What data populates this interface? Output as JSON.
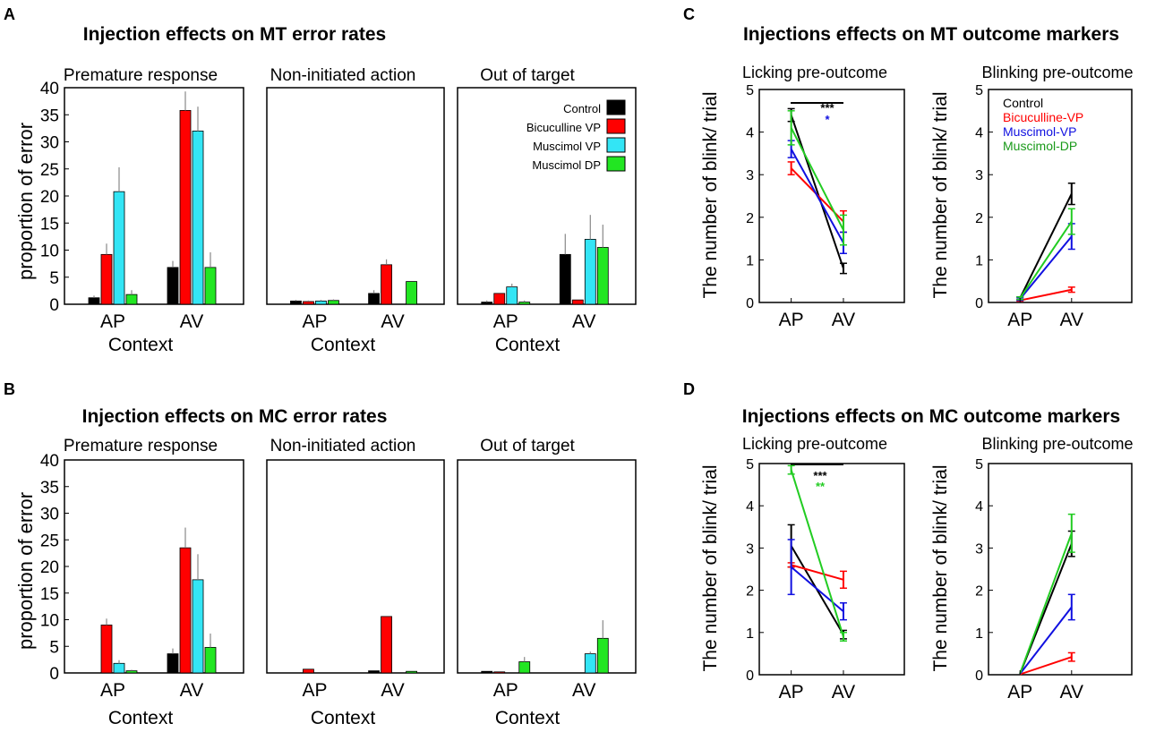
{
  "colors": {
    "control": "#000000",
    "bic": "#ff0000",
    "musVP": "#33e5f5",
    "musDP": "#22e622",
    "blue": "#1010e0",
    "green": "#22cc22"
  },
  "panelA": {
    "letter": "A",
    "title": "Injection effects on MT error rates",
    "ylabel": "proportion of error",
    "xlabel": "Context",
    "yticks": [
      "0",
      "5",
      "10",
      "15",
      "20",
      "25",
      "30",
      "35",
      "40"
    ],
    "legend": [
      "Control",
      "Bicuculline VP",
      "Muscimol VP",
      "Muscimol DP"
    ],
    "subtitles": [
      "Premature response",
      "Non-initiated action",
      "Out of target"
    ],
    "xticks": [
      "AP",
      "AV"
    ]
  },
  "panelB": {
    "letter": "B",
    "title": "Injection effects on MC error rates",
    "ylabel": "proportion of error",
    "xlabel": "Context",
    "yticks": [
      "0",
      "5",
      "10",
      "15",
      "20",
      "25",
      "30",
      "35",
      "40"
    ],
    "subtitles": [
      "Premature response",
      "Non-initiated action",
      "Out of target"
    ],
    "xticks": [
      "AP",
      "AV"
    ]
  },
  "panelC": {
    "letter": "C",
    "title": "Injections effects on MT outcome markers",
    "ylabel": "The number of blink/ trial",
    "yticks": [
      "0",
      "1",
      "2",
      "3",
      "4",
      "5"
    ],
    "subtitles": [
      "Licking pre-outcome",
      "Blinking pre-outcome"
    ],
    "legend": [
      "Control",
      "Bicuculline-VP",
      "Muscimol-VP",
      "Muscimol-DP"
    ],
    "sig_black": "***",
    "sig_colored": "*",
    "xticks": [
      "AP",
      "AV"
    ]
  },
  "panelD": {
    "letter": "D",
    "title": "Injections effects on MC outcome markers",
    "ylabel": "The number of blink/ trial",
    "yticks": [
      "0",
      "1",
      "2",
      "3",
      "4",
      "5"
    ],
    "subtitles": [
      "Licking pre-outcome",
      "Blinking pre-outcome"
    ],
    "sig_black": "***",
    "sig_colored": "**",
    "xticks": [
      "AP",
      "AV"
    ]
  },
  "chart_data": [
    {
      "id": "A1",
      "type": "bar",
      "title": "Premature response",
      "categories": [
        "AP",
        "AV"
      ],
      "ylim": [
        0,
        40
      ],
      "ylabel": "proportion of error",
      "xlabel": "Context",
      "series": [
        {
          "name": "Control",
          "values": [
            1.2,
            6.8
          ],
          "err": [
            0.4,
            1.2
          ]
        },
        {
          "name": "Bicuculline VP",
          "values": [
            9.2,
            35.8
          ],
          "err": [
            2,
            3.5
          ]
        },
        {
          "name": "Muscimol VP",
          "values": [
            20.8,
            32
          ],
          "err": [
            4.5,
            4.5
          ]
        },
        {
          "name": "Muscimol DP",
          "values": [
            1.8,
            6.8
          ],
          "err": [
            0.8,
            2.8
          ]
        }
      ]
    },
    {
      "id": "A2",
      "type": "bar",
      "title": "Non-initiated action",
      "categories": [
        "AP",
        "AV"
      ],
      "ylim": [
        0,
        40
      ],
      "xlabel": "Context",
      "series": [
        {
          "name": "Control",
          "values": [
            0.6,
            2
          ],
          "err": [
            0.2,
            0.6
          ]
        },
        {
          "name": "Bicuculline VP",
          "values": [
            0.5,
            7.3
          ],
          "err": [
            0.2,
            1
          ]
        },
        {
          "name": "Muscimol VP",
          "values": [
            0.6,
            0
          ],
          "err": [
            0.2,
            0
          ]
        },
        {
          "name": "Muscimol DP",
          "values": [
            0.7,
            4.2
          ],
          "err": [
            0.2,
            0
          ]
        }
      ]
    },
    {
      "id": "A3",
      "type": "bar",
      "title": "Out of target",
      "categories": [
        "AP",
        "AV"
      ],
      "ylim": [
        0,
        40
      ],
      "xlabel": "Context",
      "series": [
        {
          "name": "Control",
          "values": [
            0.4,
            9.2
          ],
          "err": [
            0.3,
            3.8
          ]
        },
        {
          "name": "Bicuculline VP",
          "values": [
            2,
            0.8
          ],
          "err": [
            0,
            0
          ]
        },
        {
          "name": "Muscimol VP",
          "values": [
            3.2,
            12
          ],
          "err": [
            0.6,
            4.5
          ]
        },
        {
          "name": "Muscimol DP",
          "values": [
            0.4,
            10.5
          ],
          "err": [
            0.3,
            4.2
          ]
        }
      ]
    },
    {
      "id": "B1",
      "type": "bar",
      "title": "Premature response",
      "categories": [
        "AP",
        "AV"
      ],
      "ylim": [
        0,
        40
      ],
      "ylabel": "proportion of error",
      "xlabel": "Context",
      "series": [
        {
          "name": "Control",
          "values": [
            0,
            3.6
          ],
          "err": [
            0,
            1
          ]
        },
        {
          "name": "Bicuculline VP",
          "values": [
            9,
            23.5
          ],
          "err": [
            1.2,
            3.8
          ]
        },
        {
          "name": "Muscimol VP",
          "values": [
            1.8,
            17.5
          ],
          "err": [
            0.6,
            4.8
          ]
        },
        {
          "name": "Muscimol DP",
          "values": [
            0.4,
            4.8
          ],
          "err": [
            0.2,
            2.6
          ]
        }
      ]
    },
    {
      "id": "B2",
      "type": "bar",
      "title": "Non-initiated action",
      "categories": [
        "AP",
        "AV"
      ],
      "ylim": [
        0,
        40
      ],
      "xlabel": "Context",
      "series": [
        {
          "name": "Control",
          "values": [
            0,
            0.4
          ],
          "err": [
            0,
            0
          ]
        },
        {
          "name": "Bicuculline VP",
          "values": [
            0.7,
            10.6
          ],
          "err": [
            0,
            0
          ]
        },
        {
          "name": "Muscimol VP",
          "values": [
            0,
            0
          ],
          "err": [
            0,
            0
          ]
        },
        {
          "name": "Muscimol DP",
          "values": [
            0,
            0.3
          ],
          "err": [
            0,
            0
          ]
        }
      ]
    },
    {
      "id": "B3",
      "type": "bar",
      "title": "Out of target",
      "categories": [
        "AP",
        "AV"
      ],
      "ylim": [
        0,
        40
      ],
      "xlabel": "Context",
      "series": [
        {
          "name": "Control",
          "values": [
            0.3,
            0
          ],
          "err": [
            0,
            0
          ]
        },
        {
          "name": "Bicuculline VP",
          "values": [
            0.2,
            0
          ],
          "err": [
            0,
            0
          ]
        },
        {
          "name": "Muscimol VP",
          "values": [
            0,
            3.6
          ],
          "err": [
            0,
            0.4
          ]
        },
        {
          "name": "Muscimol DP",
          "values": [
            2.1,
            6.5
          ],
          "err": [
            0.9,
            3.4
          ]
        }
      ]
    },
    {
      "id": "C1",
      "type": "line",
      "title": "Licking pre-outcome",
      "categories": [
        "AP",
        "AV"
      ],
      "ylim": [
        0,
        5
      ],
      "ylabel": "The number of blink/ trial",
      "series": [
        {
          "name": "Control",
          "values": [
            4.4,
            0.8
          ],
          "err": [
            0.15,
            0.12
          ]
        },
        {
          "name": "Bicuculline-VP",
          "values": [
            3.15,
            1.9
          ],
          "err": [
            0.15,
            0.25
          ]
        },
        {
          "name": "Muscimol-VP",
          "values": [
            3.6,
            1.4
          ],
          "err": [
            0.2,
            0.25
          ]
        },
        {
          "name": "Muscimol-DP",
          "values": [
            4.1,
            1.7
          ],
          "err": [
            0.4,
            0.35
          ]
        }
      ]
    },
    {
      "id": "C2",
      "type": "line",
      "title": "Blinking pre-outcome",
      "categories": [
        "AP",
        "AV"
      ],
      "ylim": [
        0,
        5
      ],
      "ylabel": "The number of blink/ trial",
      "series": [
        {
          "name": "Control",
          "values": [
            0.1,
            2.55
          ],
          "err": [
            0.03,
            0.25
          ]
        },
        {
          "name": "Bicuculline-VP",
          "values": [
            0.05,
            0.3
          ],
          "err": [
            0.02,
            0.06
          ]
        },
        {
          "name": "Muscimol-VP",
          "values": [
            0.08,
            1.55
          ],
          "err": [
            0.03,
            0.3
          ]
        },
        {
          "name": "Muscimol-DP",
          "values": [
            0.1,
            1.9
          ],
          "err": [
            0.03,
            0.3
          ]
        }
      ]
    },
    {
      "id": "D1",
      "type": "line",
      "title": "Licking pre-outcome",
      "categories": [
        "AP",
        "AV"
      ],
      "ylim": [
        0,
        5
      ],
      "ylabel": "The number of blink/ trial",
      "series": [
        {
          "name": "Control",
          "values": [
            3.05,
            0.95
          ],
          "err": [
            0.5,
            0.1
          ]
        },
        {
          "name": "Bicuculline-VP",
          "values": [
            2.6,
            2.25
          ],
          "err": [
            0.05,
            0.2
          ]
        },
        {
          "name": "Muscimol-VP",
          "values": [
            2.55,
            1.5
          ],
          "err": [
            0.65,
            0.2
          ]
        },
        {
          "name": "Muscimol-DP",
          "values": [
            4.85,
            0.9
          ],
          "err": [
            0.1,
            0.1
          ]
        }
      ]
    },
    {
      "id": "D2",
      "type": "line",
      "title": "Blinking pre-outcome",
      "categories": [
        "AP",
        "AV"
      ],
      "ylim": [
        0,
        5
      ],
      "ylabel": "The number of blink/ trial",
      "series": [
        {
          "name": "Control",
          "values": [
            0.02,
            3.1
          ],
          "err": [
            0,
            0.3
          ]
        },
        {
          "name": "Bicuculline-VP",
          "values": [
            0.01,
            0.42
          ],
          "err": [
            0,
            0.1
          ]
        },
        {
          "name": "Muscimol-VP",
          "values": [
            0.02,
            1.6
          ],
          "err": [
            0,
            0.3
          ]
        },
        {
          "name": "Muscimol-DP",
          "values": [
            0.03,
            3.35
          ],
          "err": [
            0,
            0.45
          ]
        }
      ]
    }
  ]
}
